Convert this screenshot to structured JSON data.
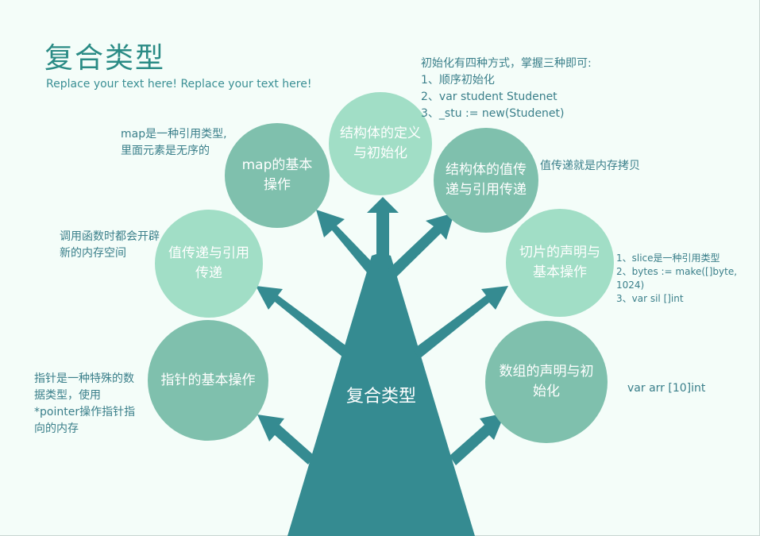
{
  "header": {
    "title": "复合类型",
    "subtitle": "Replace your text here!   Replace your text here!"
  },
  "trunk": {
    "label": "复合类型",
    "color": "#358b91"
  },
  "nodes": {
    "pointer": "指针的基本操作",
    "value_ref": "值传递与引用传递",
    "map": "map的基本操作",
    "struct_def": "结构体的定义与初始化",
    "struct_value": "结构体的值传递与引用传递",
    "slice": "切片的声明与基本操作",
    "array": "数组的声明与初始化"
  },
  "notes": {
    "pointer": "指针是一种特殊的数据类型，使用*pointer操作指针指向的内存",
    "value_ref": "调用函数时都会开辟新的内存空间",
    "map": "map是一种引用类型,里面元素是无序的",
    "struct_def": "初始化有四种方式，掌握三种即可:\n1、顺序初始化\n2、var student Studenet\n3、_stu := new(Studenet)",
    "struct_value": "值传递就是内存拷贝",
    "slice": "1、slice是一种引用类型\n2、bytes := make([]byte, 1024)\n3、var sil []int",
    "array": "var arr [10]int"
  },
  "colors": {
    "background": "#f4fdf9",
    "circle_dark": "#7fc0ad",
    "circle_light": "#a1dec6",
    "text_teal": "#3a7f8a"
  }
}
